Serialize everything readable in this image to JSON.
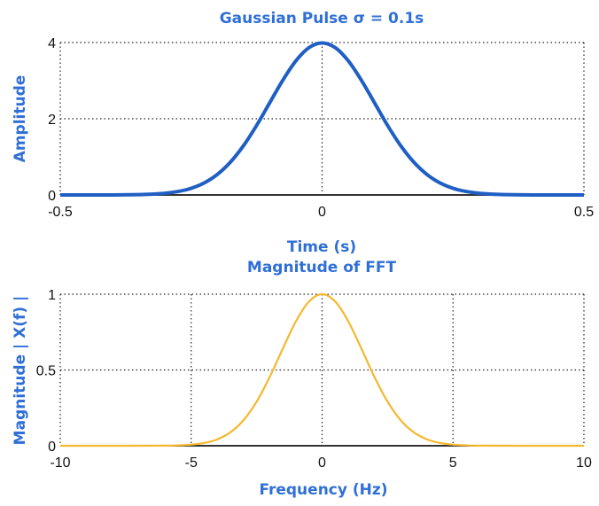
{
  "chart_data": [
    {
      "type": "line",
      "title": "Gaussian Pulse σ = 0.1s",
      "xlabel": "Time (s)",
      "ylabel": "Amplitude",
      "xlim": [
        -0.5,
        0.5
      ],
      "ylim": [
        0,
        4
      ],
      "xticks": [
        "-0.5",
        "0",
        "0.5"
      ],
      "yticks": [
        "0",
        "2",
        "4"
      ],
      "xtick_values": [
        -0.5,
        0,
        0.5
      ],
      "ytick_values": [
        0,
        2,
        4
      ],
      "grid": true,
      "color": "#1f5fc4",
      "x": [
        -0.5,
        -0.45,
        -0.4,
        -0.35,
        -0.325,
        -0.3,
        -0.275,
        -0.25,
        -0.225,
        -0.2,
        -0.175,
        -0.15,
        -0.125,
        -0.1,
        -0.075,
        -0.05,
        -0.025,
        0,
        0.025,
        0.05,
        0.075,
        0.1,
        0.125,
        0.15,
        0.175,
        0.2,
        0.225,
        0.25,
        0.275,
        0.3,
        0.325,
        0.35,
        0.4,
        0.45,
        0.5
      ],
      "y": [
        0,
        0,
        0.001,
        0.009,
        0.02,
        0.044,
        0.091,
        0.175,
        0.317,
        0.54,
        0.863,
        1.295,
        1.826,
        2.42,
        3.011,
        3.52,
        3.866,
        3.989,
        3.866,
        3.52,
        3.011,
        2.42,
        1.826,
        1.295,
        0.863,
        0.54,
        0.317,
        0.175,
        0.091,
        0.044,
        0.02,
        0.009,
        0.001,
        0,
        0
      ]
    },
    {
      "type": "line",
      "title": "Magnitude of FFT",
      "xlabel": "Frequency (Hz)",
      "ylabel": "Magnitude | X(f) |",
      "xlim": [
        -10,
        10
      ],
      "ylim": [
        0,
        1
      ],
      "xticks": [
        "-10",
        "-5",
        "0",
        "5",
        "10"
      ],
      "yticks": [
        "0",
        "0.5",
        "1"
      ],
      "xtick_values": [
        -10,
        -5,
        0,
        5,
        10
      ],
      "ytick_values": [
        0,
        0.5,
        1
      ],
      "grid": true,
      "color": "#f5b82e",
      "x": [
        -10,
        -8,
        -6,
        -5.5,
        -5,
        -4.5,
        -4,
        -3.5,
        -3,
        -2.5,
        -2,
        -1.5,
        -1,
        -0.5,
        0,
        0.5,
        1,
        1.5,
        2,
        2.5,
        3,
        3.5,
        4,
        4.5,
        5,
        5.5,
        6,
        8,
        10
      ],
      "y": [
        0,
        0,
        0.0008,
        0.0026,
        0.0072,
        0.0184,
        0.0425,
        0.089,
        0.169,
        0.291,
        0.454,
        0.641,
        0.821,
        0.952,
        1,
        0.952,
        0.821,
        0.641,
        0.454,
        0.291,
        0.169,
        0.089,
        0.0425,
        0.0184,
        0.0072,
        0.0026,
        0.0008,
        0,
        0
      ]
    }
  ]
}
